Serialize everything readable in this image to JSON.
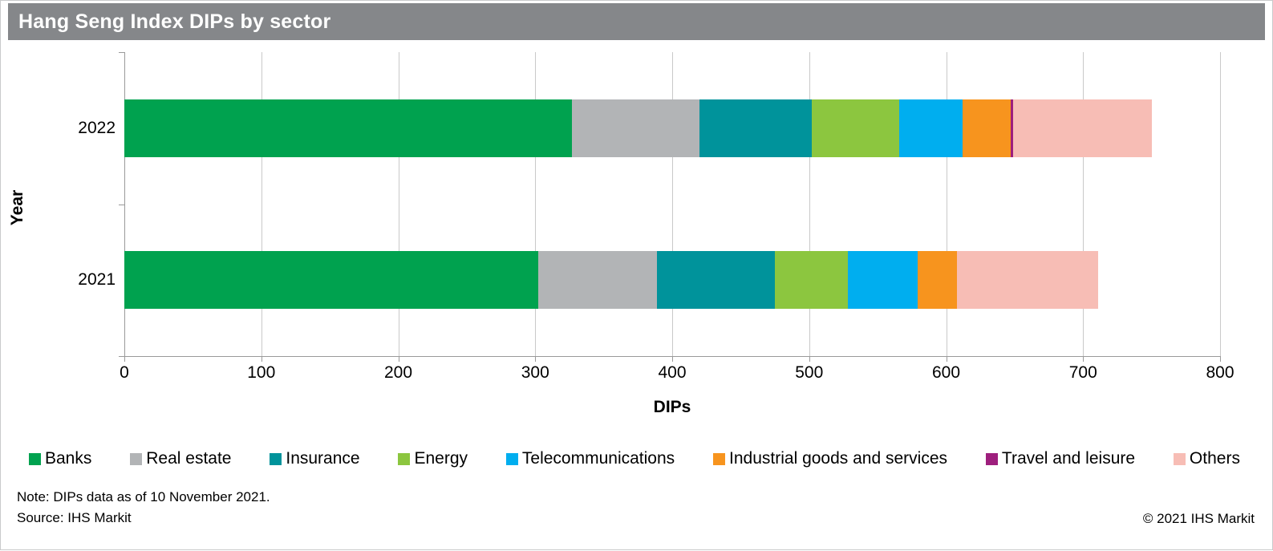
{
  "title": "Hang Seng Index DIPs by sector",
  "chart_data": {
    "type": "bar",
    "orientation": "horizontal",
    "stacked": true,
    "title": "Hang Seng Index DIPs by sector",
    "categories": [
      "2022",
      "2021"
    ],
    "series": [
      {
        "name": "Banks",
        "color": "#00a24f",
        "values": [
          327,
          302
        ]
      },
      {
        "name": "Real estate",
        "color": "#b2b4b6",
        "values": [
          93,
          87
        ]
      },
      {
        "name": "Insurance",
        "color": "#00939b",
        "values": [
          82,
          86
        ]
      },
      {
        "name": "Energy",
        "color": "#8cc63f",
        "values": [
          64,
          53
        ]
      },
      {
        "name": "Telecommunications",
        "color": "#00aeef",
        "values": [
          46,
          51
        ]
      },
      {
        "name": "Industrial goods and services",
        "color": "#f7941e",
        "values": [
          35,
          29
        ]
      },
      {
        "name": "Travel and leisure",
        "color": "#9e1f7d",
        "values": [
          2,
          0
        ]
      },
      {
        "name": "Others",
        "color": "#f7bdb5",
        "values": [
          101,
          103
        ]
      }
    ],
    "totals": [
      750,
      711
    ],
    "xlabel": "DIPs",
    "ylabel": "Year",
    "xlim": [
      0,
      800
    ],
    "xticks": [
      0,
      100,
      200,
      300,
      400,
      500,
      600,
      700,
      800
    ],
    "grid": true,
    "legend_position": "bottom"
  },
  "colors": {
    "title_bar_bg": "#85878a",
    "title_text": "#ffffff",
    "gridline": "#c9c9c9",
    "axis": "#9a9a9a"
  },
  "footer": {
    "note": "Note: DIPs data as of 10 November 2021.",
    "source": "Source: IHS Markit",
    "copyright": "© 2021 IHS Markit"
  }
}
